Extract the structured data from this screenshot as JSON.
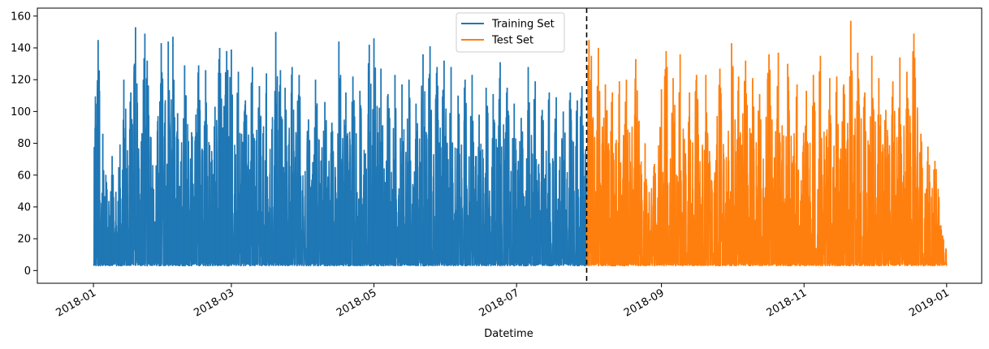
{
  "chart_data": {
    "type": "line",
    "title": "",
    "xlabel": "Datetime",
    "ylabel": "",
    "ylim": [
      -8,
      165
    ],
    "xlim": [
      "2017-12-08",
      "2019-01-16"
    ],
    "y_ticks": [
      0,
      20,
      40,
      60,
      80,
      100,
      120,
      140,
      160
    ],
    "x_ticks": [
      "2018-01",
      "2018-03",
      "2018-05",
      "2018-07",
      "2018-09",
      "2018-11",
      "2019-01"
    ],
    "grid": false,
    "legend_position": "upper-center",
    "split_marker": {
      "date": "2018-07-31",
      "style": "dashed",
      "color": "#000000"
    },
    "series": [
      {
        "name": "Training Set",
        "color": "#1f77b4",
        "range": [
          "2018-01-01",
          "2018-07-31"
        ],
        "baseline": 3,
        "peaks": [
          [
            "2018-01-02",
            105
          ],
          [
            "2018-01-03",
            145
          ],
          [
            "2018-01-05",
            86
          ],
          [
            "2018-01-09",
            72
          ],
          [
            "2018-01-12",
            50
          ],
          [
            "2018-01-14",
            120
          ],
          [
            "2018-01-17",
            112
          ],
          [
            "2018-01-19",
            153
          ],
          [
            "2018-01-23",
            149
          ],
          [
            "2018-01-24",
            132
          ],
          [
            "2018-01-28",
            59
          ],
          [
            "2018-01-30",
            143
          ],
          [
            "2018-02-02",
            144
          ],
          [
            "2018-02-04",
            147
          ],
          [
            "2018-02-06",
            99
          ],
          [
            "2018-02-09",
            129
          ],
          [
            "2018-02-12",
            87
          ],
          [
            "2018-02-15",
            129
          ],
          [
            "2018-02-18",
            126
          ],
          [
            "2018-02-22",
            103
          ],
          [
            "2018-02-24",
            140
          ],
          [
            "2018-02-27",
            138
          ],
          [
            "2018-03-01",
            139
          ],
          [
            "2018-03-04",
            125
          ],
          [
            "2018-03-07",
            107
          ],
          [
            "2018-03-10",
            128
          ],
          [
            "2018-03-13",
            116
          ],
          [
            "2018-03-16",
            124
          ],
          [
            "2018-03-20",
            150
          ],
          [
            "2018-03-22",
            126
          ],
          [
            "2018-03-24",
            115
          ],
          [
            "2018-03-27",
            128
          ],
          [
            "2018-03-30",
            123
          ],
          [
            "2018-04-03",
            95
          ],
          [
            "2018-04-06",
            120
          ],
          [
            "2018-04-10",
            106
          ],
          [
            "2018-04-13",
            93
          ],
          [
            "2018-04-16",
            144
          ],
          [
            "2018-04-19",
            112
          ],
          [
            "2018-04-22",
            122
          ],
          [
            "2018-04-25",
            113
          ],
          [
            "2018-04-29",
            142
          ],
          [
            "2018-05-01",
            146
          ],
          [
            "2018-05-04",
            127
          ],
          [
            "2018-05-07",
            111
          ],
          [
            "2018-05-10",
            123
          ],
          [
            "2018-05-13",
            117
          ],
          [
            "2018-05-16",
            120
          ],
          [
            "2018-05-19",
            105
          ],
          [
            "2018-05-22",
            136
          ],
          [
            "2018-05-25",
            141
          ],
          [
            "2018-05-28",
            128
          ],
          [
            "2018-05-31",
            132
          ],
          [
            "2018-06-03",
            128
          ],
          [
            "2018-06-06",
            110
          ],
          [
            "2018-06-09",
            120
          ],
          [
            "2018-06-12",
            123
          ],
          [
            "2018-06-15",
            98
          ],
          [
            "2018-06-18",
            115
          ],
          [
            "2018-06-21",
            111
          ],
          [
            "2018-06-24",
            131
          ],
          [
            "2018-06-27",
            115
          ],
          [
            "2018-06-30",
            105
          ],
          [
            "2018-07-03",
            96
          ],
          [
            "2018-07-06",
            128
          ],
          [
            "2018-07-09",
            119
          ],
          [
            "2018-07-12",
            101
          ],
          [
            "2018-07-15",
            112
          ],
          [
            "2018-07-18",
            109
          ],
          [
            "2018-07-21",
            100
          ],
          [
            "2018-07-24",
            112
          ],
          [
            "2018-07-27",
            107
          ],
          [
            "2018-07-29",
            116
          ]
        ]
      },
      {
        "name": "Test Set",
        "color": "#ff7f0e",
        "range": [
          "2018-07-31",
          "2019-01-01"
        ],
        "baseline": 3,
        "peaks": [
          [
            "2018-08-01",
            145
          ],
          [
            "2018-08-02",
            135
          ],
          [
            "2018-08-05",
            140
          ],
          [
            "2018-08-08",
            117
          ],
          [
            "2018-08-11",
            112
          ],
          [
            "2018-08-14",
            119
          ],
          [
            "2018-08-17",
            120
          ],
          [
            "2018-08-21",
            133
          ],
          [
            "2018-08-25",
            80
          ],
          [
            "2018-08-29",
            67
          ],
          [
            "2018-09-01",
            114
          ],
          [
            "2018-09-03",
            138
          ],
          [
            "2018-09-06",
            121
          ],
          [
            "2018-09-09",
            136
          ],
          [
            "2018-09-13",
            112
          ],
          [
            "2018-09-16",
            123
          ],
          [
            "2018-09-20",
            123
          ],
          [
            "2018-09-26",
            127
          ],
          [
            "2018-10-01",
            143
          ],
          [
            "2018-10-04",
            122
          ],
          [
            "2018-10-07",
            132
          ],
          [
            "2018-10-10",
            121
          ],
          [
            "2018-10-13",
            111
          ],
          [
            "2018-10-17",
            136
          ],
          [
            "2018-10-21",
            137
          ],
          [
            "2018-10-25",
            130
          ],
          [
            "2018-10-29",
            117
          ],
          [
            "2018-11-02",
            113
          ],
          [
            "2018-11-05",
            123
          ],
          [
            "2018-11-08",
            135
          ],
          [
            "2018-11-12",
            121
          ],
          [
            "2018-11-15",
            122
          ],
          [
            "2018-11-18",
            117
          ],
          [
            "2018-11-21",
            157
          ],
          [
            "2018-11-24",
            137
          ],
          [
            "2018-11-27",
            112
          ],
          [
            "2018-11-30",
            135
          ],
          [
            "2018-12-03",
            121
          ],
          [
            "2018-12-06",
            101
          ],
          [
            "2018-12-09",
            119
          ],
          [
            "2018-12-12",
            134
          ],
          [
            "2018-12-15",
            125
          ],
          [
            "2018-12-18",
            149
          ],
          [
            "2018-12-21",
            86
          ],
          [
            "2018-12-24",
            78
          ],
          [
            "2018-12-27",
            69
          ],
          [
            "2018-12-29",
            26
          ]
        ]
      }
    ]
  }
}
